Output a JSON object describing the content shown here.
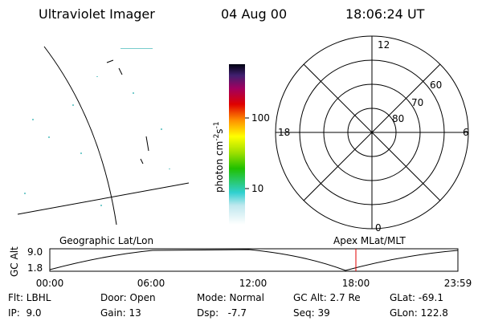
{
  "header": {
    "title": "Ultraviolet Imager",
    "date": "04 Aug 00",
    "time": "18:06:24 UT"
  },
  "colorbar": {
    "label": "photon cm",
    "exp1": "-2",
    "unit2": "s",
    "exp2": "-1",
    "ticks": [
      "100",
      "10"
    ]
  },
  "polar": {
    "rings": [
      "80",
      "70",
      "60"
    ],
    "mlt": [
      "12",
      "6",
      "18",
      "0"
    ]
  },
  "altitude_plot": {
    "ylabel": "GC Alt",
    "yticks": [
      "9.0",
      "1.8"
    ],
    "left_title": "Geographic Lat/Lon",
    "right_title": "Apex MLat/MLT",
    "xticks": [
      "00:00",
      "06:00",
      "12:00",
      "18:00",
      "23:59"
    ]
  },
  "status": {
    "rows": [
      [
        "Flt: LBHL",
        "Door: Open",
        "Mode: Normal",
        "GC Alt: 2.7 Re",
        "GLat: -69.1"
      ],
      [
        "IP:  9.0",
        "Gain: 13",
        "Dsp:   -7.7",
        "Seq: 39",
        "GLon: 122.8"
      ]
    ]
  }
}
